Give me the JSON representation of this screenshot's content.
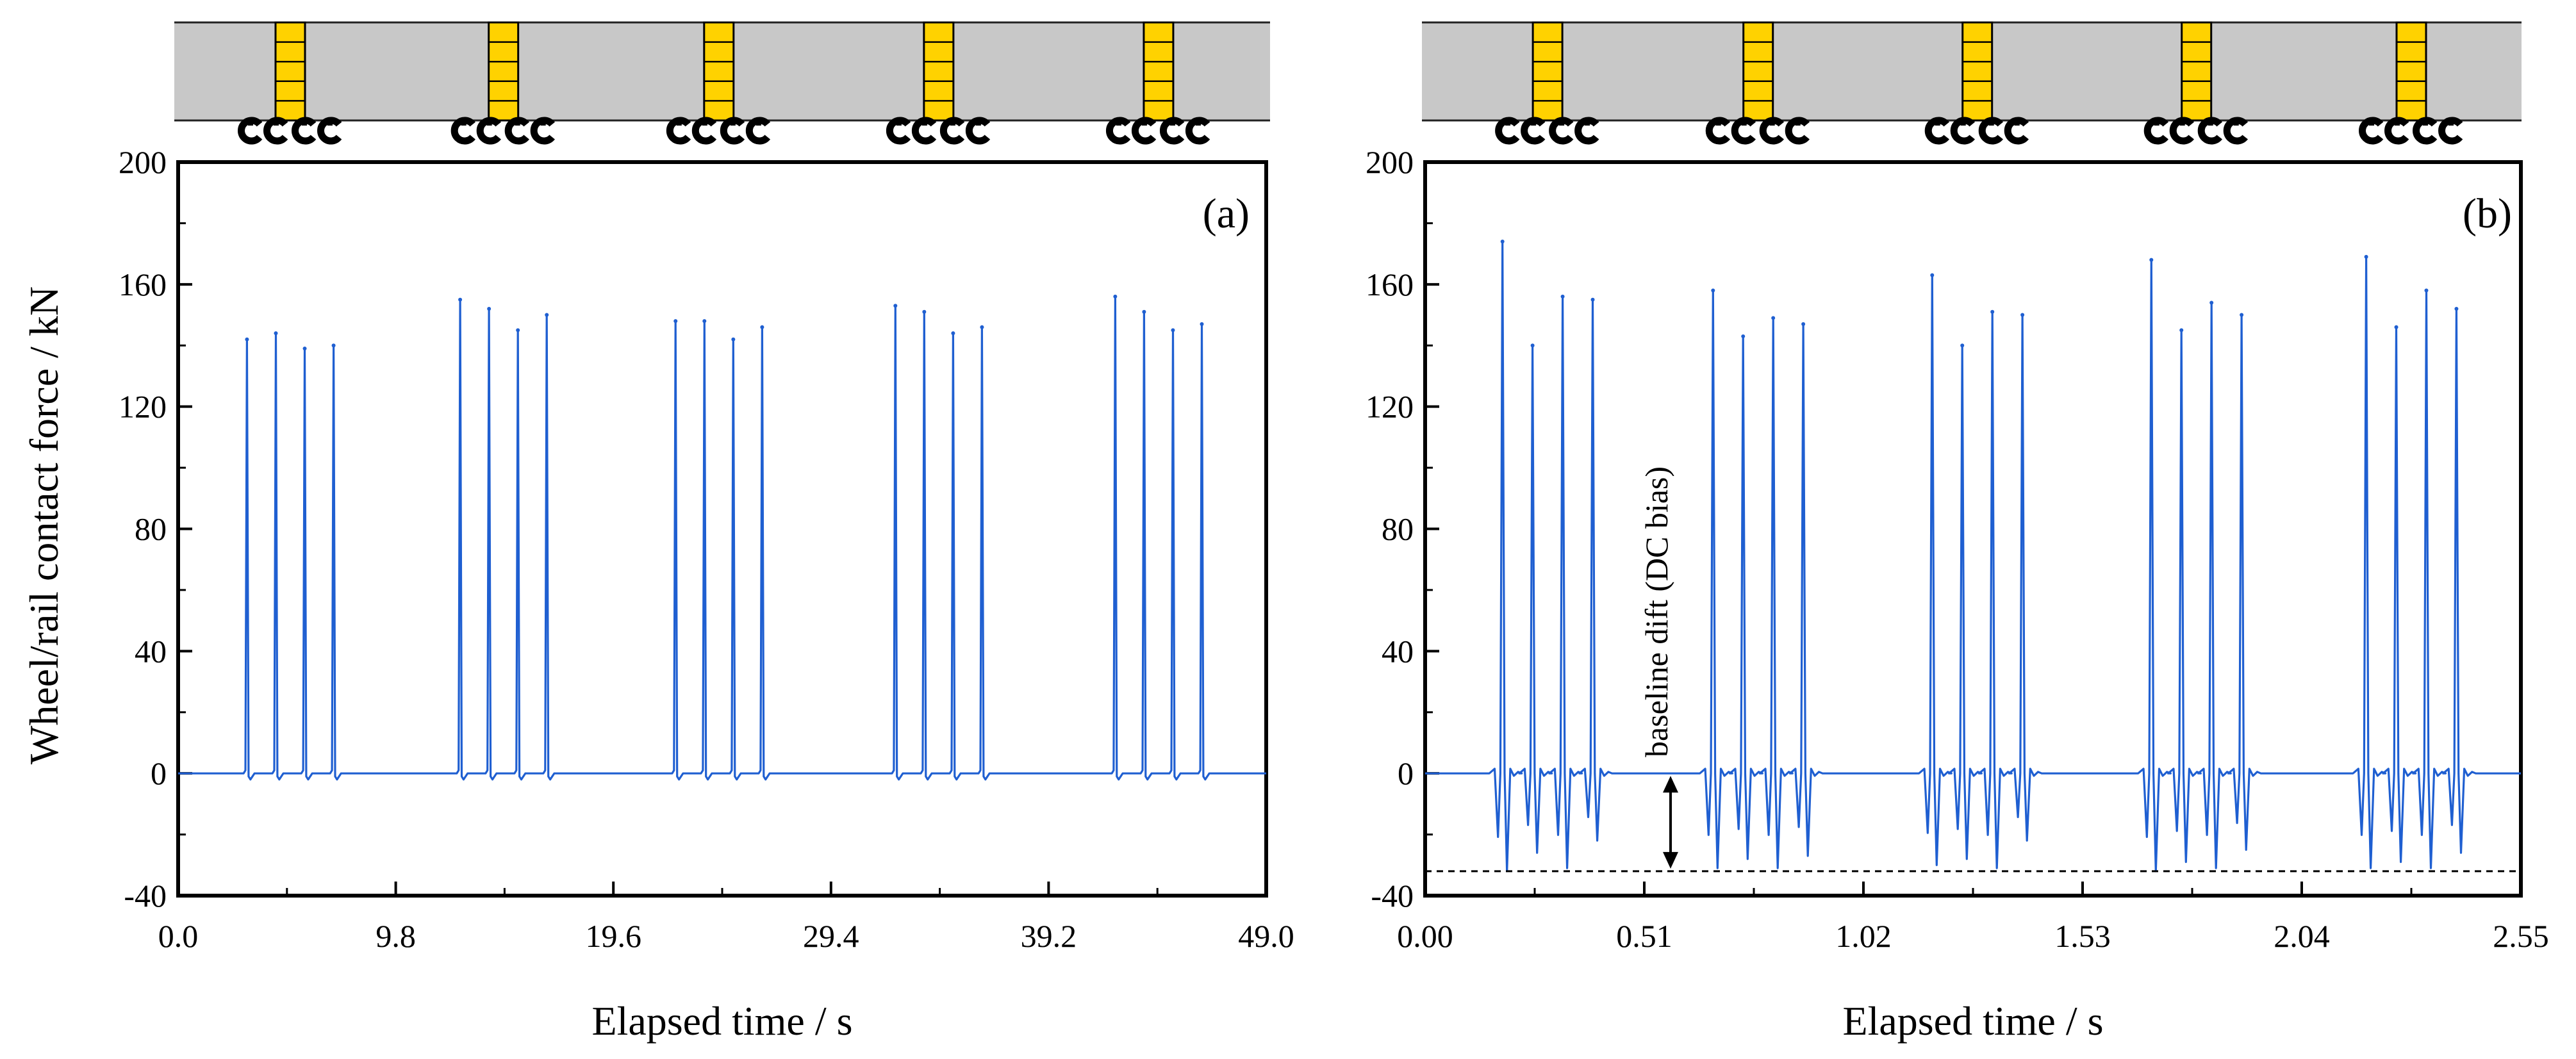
{
  "figure": {
    "ylabel": "Wheel/rail contact force / kN",
    "colors": {
      "line": "#1f5fd1",
      "frame": "#000000",
      "car_body": "#c8c8c8",
      "bogie_mark": "#ffd200",
      "wheel": "#000000"
    },
    "train": {
      "cars": 5,
      "icons": [
        "wheelset-icon",
        "wheelset-icon",
        "wheelset-icon",
        "wheelset-icon"
      ]
    }
  },
  "chart_data": [
    {
      "type": "line",
      "panel_label": "(a)",
      "xlabel": "Elapsed time / s",
      "ylabel": "Wheel/rail contact force / kN",
      "xlim": [
        0.0,
        49.0
      ],
      "ylim": [
        -40,
        200
      ],
      "xticks": [
        "0.0",
        "9.8",
        "19.6",
        "29.4",
        "39.2",
        "49.0"
      ],
      "xtick_values": [
        0.0,
        9.8,
        19.6,
        29.4,
        39.2,
        49.0
      ],
      "yticks": [
        "-40",
        "0",
        "40",
        "80",
        "120",
        "160",
        "200"
      ],
      "ytick_values": [
        -40,
        0,
        40,
        80,
        120,
        160,
        200
      ],
      "grid": false,
      "baseline": 0,
      "peak_width": 0.28,
      "undershoot": -2,
      "peaks": [
        {
          "t": 3.1,
          "value": 142
        },
        {
          "t": 4.4,
          "value": 144
        },
        {
          "t": 5.7,
          "value": 139
        },
        {
          "t": 7.0,
          "value": 140
        },
        {
          "t": 12.7,
          "value": 155
        },
        {
          "t": 14.0,
          "value": 152
        },
        {
          "t": 15.3,
          "value": 145
        },
        {
          "t": 16.6,
          "value": 150
        },
        {
          "t": 22.4,
          "value": 148
        },
        {
          "t": 23.7,
          "value": 148
        },
        {
          "t": 25.0,
          "value": 142
        },
        {
          "t": 26.3,
          "value": 146
        },
        {
          "t": 32.3,
          "value": 153
        },
        {
          "t": 33.6,
          "value": 151
        },
        {
          "t": 34.9,
          "value": 144
        },
        {
          "t": 36.2,
          "value": 146
        },
        {
          "t": 42.2,
          "value": 156
        },
        {
          "t": 43.5,
          "value": 151
        },
        {
          "t": 44.8,
          "value": 145
        },
        {
          "t": 46.1,
          "value": 147
        }
      ]
    },
    {
      "type": "line",
      "panel_label": "(b)",
      "xlabel": "Elapsed time / s",
      "xlim": [
        0.0,
        2.55
      ],
      "ylim": [
        -40,
        200
      ],
      "xticks": [
        "0.00",
        "0.51",
        "1.02",
        "1.53",
        "2.04",
        "2.55"
      ],
      "xtick_values": [
        0.0,
        0.51,
        1.02,
        1.53,
        2.04,
        2.55
      ],
      "yticks": [
        "-40",
        "0",
        "40",
        "80",
        "120",
        "160",
        "200"
      ],
      "ytick_values": [
        -40,
        0,
        40,
        80,
        120,
        160,
        200
      ],
      "grid": false,
      "baseline": 0,
      "bias_level": -32,
      "annotation": "baseline dift (DC bias)",
      "peak_width": 0.014,
      "peaks": [
        {
          "t": 0.18,
          "value": 174,
          "low": -32
        },
        {
          "t": 0.25,
          "value": 140,
          "low": -26
        },
        {
          "t": 0.32,
          "value": 156,
          "low": -31
        },
        {
          "t": 0.39,
          "value": 155,
          "low": -22
        },
        {
          "t": 0.67,
          "value": 158,
          "low": -31
        },
        {
          "t": 0.74,
          "value": 143,
          "low": -28
        },
        {
          "t": 0.81,
          "value": 149,
          "low": -31
        },
        {
          "t": 0.88,
          "value": 147,
          "low": -27
        },
        {
          "t": 1.18,
          "value": 163,
          "low": -30
        },
        {
          "t": 1.25,
          "value": 140,
          "low": -28
        },
        {
          "t": 1.32,
          "value": 151,
          "low": -31
        },
        {
          "t": 1.39,
          "value": 150,
          "low": -22
        },
        {
          "t": 1.69,
          "value": 168,
          "low": -32
        },
        {
          "t": 1.76,
          "value": 145,
          "low": -29
        },
        {
          "t": 1.83,
          "value": 154,
          "low": -31
        },
        {
          "t": 1.9,
          "value": 150,
          "low": -25
        },
        {
          "t": 2.19,
          "value": 169,
          "low": -31
        },
        {
          "t": 2.26,
          "value": 146,
          "low": -29
        },
        {
          "t": 2.33,
          "value": 158,
          "low": -31
        },
        {
          "t": 2.4,
          "value": 152,
          "low": -26
        }
      ]
    }
  ]
}
